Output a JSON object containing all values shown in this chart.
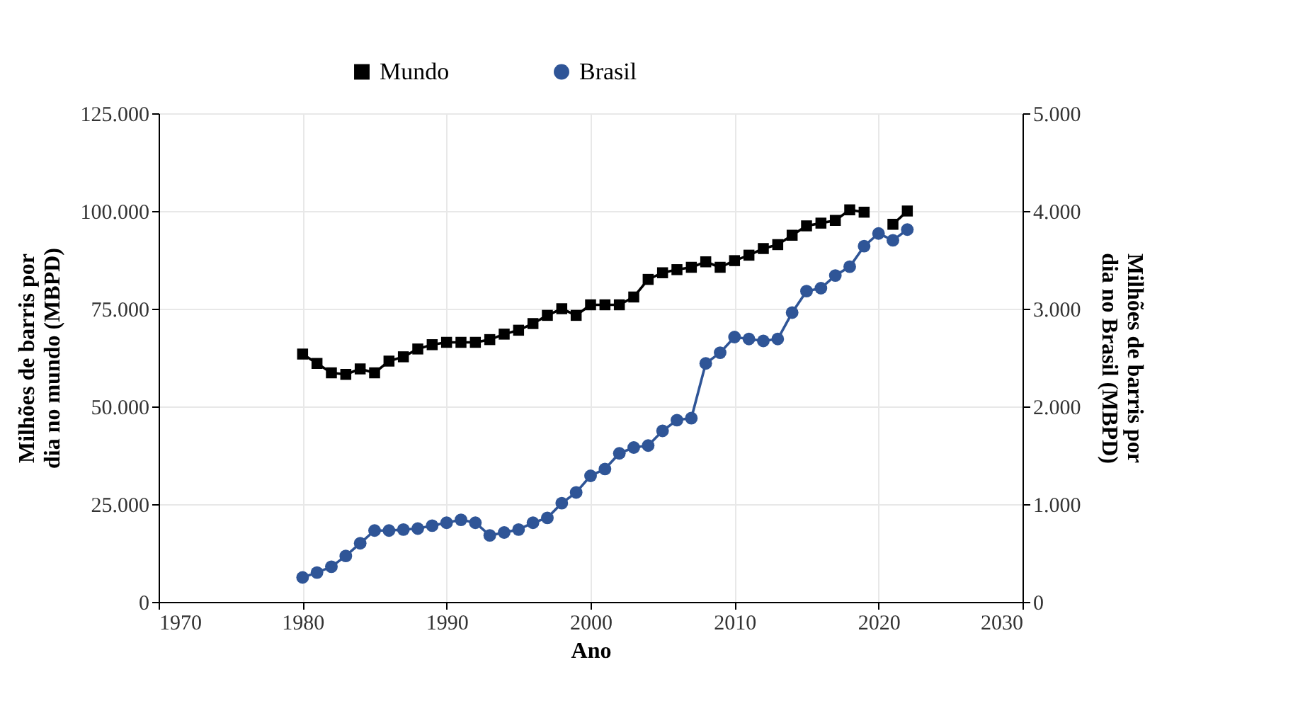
{
  "chart_data": {
    "type": "line",
    "xlabel": "Ano",
    "ylabel": "Milhões de barris por dia no mundo (MBPD)",
    "y2label": "Milhões de barris por dia no Brasil (MBPD)",
    "x": [
      1980,
      1981,
      1982,
      1983,
      1984,
      1985,
      1986,
      1987,
      1988,
      1989,
      1990,
      1991,
      1992,
      1993,
      1994,
      1995,
      1996,
      1997,
      1998,
      1999,
      2000,
      2001,
      2002,
      2003,
      2004,
      2005,
      2006,
      2007,
      2008,
      2009,
      2010,
      2011,
      2012,
      2013,
      2014,
      2015,
      2016,
      2017,
      2018,
      2019,
      2020,
      2021,
      2022
    ],
    "series": [
      {
        "name": "Mundo",
        "color": "#000000",
        "marker": "square",
        "values": [
          63400,
          61000,
          58600,
          58200,
          59600,
          58600,
          61600,
          62700,
          64700,
          65800,
          66400,
          66400,
          66400,
          67100,
          68500,
          69500,
          71200,
          73300,
          75000,
          73300,
          76000,
          76000,
          76000,
          78000,
          82500,
          84200,
          85000,
          85600,
          87000,
          85600,
          87300,
          88700,
          90400,
          91400,
          93800,
          96200,
          96900,
          97600,
          100300,
          99700,
          null,
          96600,
          100000
        ]
      },
      {
        "name": "Brasil",
        "color": "#2f5597",
        "marker": "circle",
        "axis": "y2",
        "values": [
          250,
          300,
          360,
          470,
          600,
          730,
          730,
          740,
          750,
          780,
          810,
          840,
          810,
          680,
          710,
          740,
          810,
          860,
          1010,
          1120,
          1290,
          1360,
          1520,
          1580,
          1600,
          1750,
          1860,
          1880,
          2440,
          2550,
          2710,
          2690,
          2670,
          2690,
          2960,
          3180,
          3210,
          3340,
          3430,
          3640,
          3770,
          3700,
          3810
        ]
      }
    ],
    "xlim": [
      1970,
      2030
    ],
    "xticks": [
      1970,
      1980,
      1990,
      2000,
      2010,
      2020,
      2030
    ],
    "ylim": [
      0,
      125000
    ],
    "yticks": [
      0,
      {
        "value": 25000,
        "label": "25.000"
      },
      {
        "value": 50000,
        "label": "50.000"
      },
      {
        "value": 75000,
        "label": "75.000"
      },
      {
        "value": 100000,
        "label": "100.000"
      },
      {
        "value": 125000,
        "label": "125.000"
      }
    ],
    "y2lim": [
      0,
      5000
    ],
    "y2ticks": [
      0,
      {
        "value": 1000,
        "label": "1.000"
      },
      {
        "value": 2000,
        "label": "2.000"
      },
      {
        "value": 3000,
        "label": "3.000"
      },
      {
        "value": 4000,
        "label": "4.000"
      },
      {
        "value": 5000,
        "label": "5.000"
      }
    ],
    "grid": true,
    "legend": "top",
    "line_style": "solid"
  }
}
